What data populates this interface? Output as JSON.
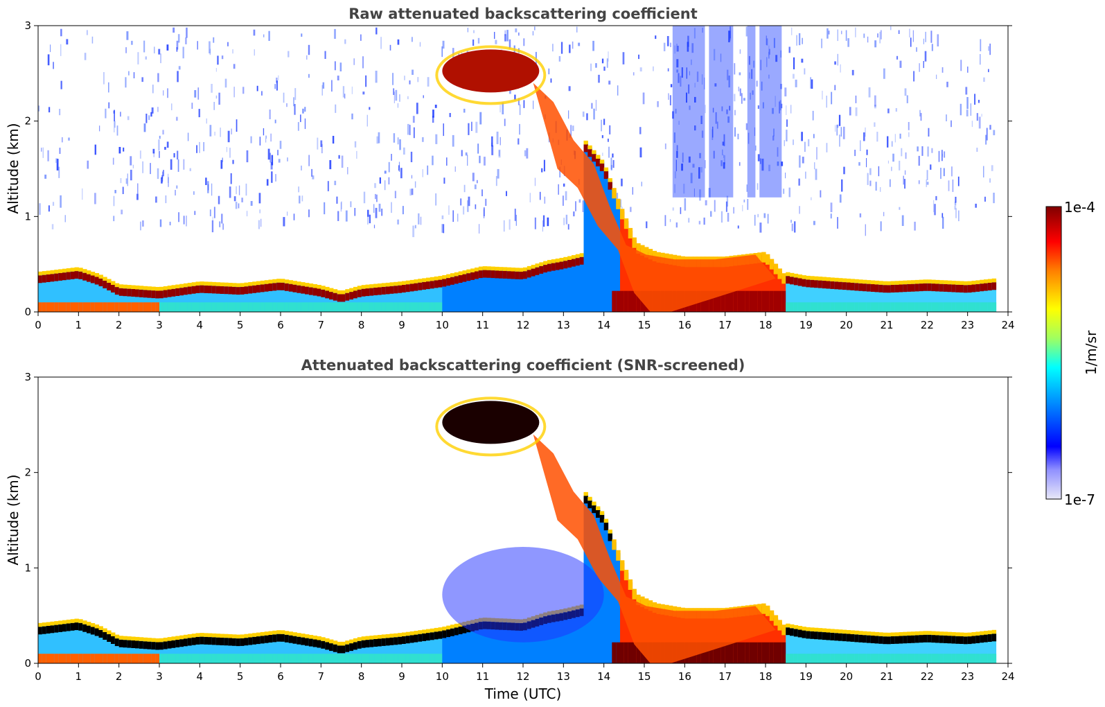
{
  "chart_data": [
    {
      "type": "heatmap",
      "title": "Raw attenuated backscattering coefficient",
      "xlabel": "",
      "ylabel": "Altitude (km)",
      "xlim": [
        0,
        24
      ],
      "ylim": [
        0,
        3
      ],
      "x_ticks": [
        "0",
        "1",
        "2",
        "3",
        "4",
        "5",
        "6",
        "7",
        "8",
        "9",
        "10",
        "11",
        "12",
        "13",
        "14",
        "15",
        "16",
        "17",
        "18",
        "19",
        "20",
        "21",
        "22",
        "23",
        "24"
      ],
      "y_ticks": [
        "0",
        "1",
        "2",
        "3"
      ],
      "data_end_hour": 23.65,
      "screened": false,
      "features": {
        "boundary_layer_top_km": [
          [
            0,
            0.4
          ],
          [
            1,
            0.45
          ],
          [
            1.5,
            0.38
          ],
          [
            2,
            0.27
          ],
          [
            3,
            0.24
          ],
          [
            4,
            0.3
          ],
          [
            5,
            0.28
          ],
          [
            6,
            0.33
          ],
          [
            7,
            0.26
          ],
          [
            7.5,
            0.2
          ],
          [
            8,
            0.26
          ],
          [
            9,
            0.3
          ],
          [
            10,
            0.36
          ],
          [
            11,
            0.46
          ],
          [
            12,
            0.44
          ],
          [
            12.6,
            0.52
          ],
          [
            13,
            0.55
          ],
          [
            13.5,
            0.6
          ]
        ],
        "descending_cloud_km": [
          [
            12.5,
            2.4
          ],
          [
            13,
            2.2
          ],
          [
            13.5,
            1.8
          ],
          [
            14,
            1.55
          ],
          [
            14.4,
            1.1
          ],
          [
            14.8,
            0.7
          ],
          [
            15.3,
            0.6
          ],
          [
            16,
            0.55
          ],
          [
            17,
            0.55
          ],
          [
            18,
            0.6
          ],
          [
            18.5,
            0.35
          ]
        ],
        "mid_cloud": {
          "x_start": 10,
          "x_end": 12.4,
          "y_low": 2.3,
          "y_high": 2.75
        },
        "evening_layer_top_km": [
          [
            18.5,
            0.4
          ],
          [
            19,
            0.36
          ],
          [
            20,
            0.33
          ],
          [
            21,
            0.3
          ],
          [
            22,
            0.32
          ],
          [
            23,
            0.3
          ],
          [
            23.65,
            0.33
          ]
        ]
      }
    },
    {
      "type": "heatmap",
      "title": "Attenuated backscattering coefficient (SNR-screened)",
      "xlabel": "Time (UTC)",
      "ylabel": "Altitude (km)",
      "xlim": [
        0,
        24
      ],
      "ylim": [
        0,
        3
      ],
      "x_ticks": [
        "0",
        "1",
        "2",
        "3",
        "4",
        "5",
        "6",
        "7",
        "8",
        "9",
        "10",
        "11",
        "12",
        "13",
        "14",
        "15",
        "16",
        "17",
        "18",
        "19",
        "20",
        "21",
        "22",
        "23",
        "24"
      ],
      "y_ticks": [
        "0",
        "1",
        "2",
        "3"
      ],
      "data_end_hour": 23.65,
      "screened": true
    }
  ],
  "colorbar": {
    "label": "1/m/sr",
    "max_label": "1e-4",
    "min_label": "1e-7",
    "colormap": "jet",
    "colors": [
      "#e8e8f8",
      "#0000ff",
      "#00a0ff",
      "#00ffff",
      "#c0ff40",
      "#ffff00",
      "#ff8000",
      "#ff0000",
      "#800000"
    ]
  }
}
